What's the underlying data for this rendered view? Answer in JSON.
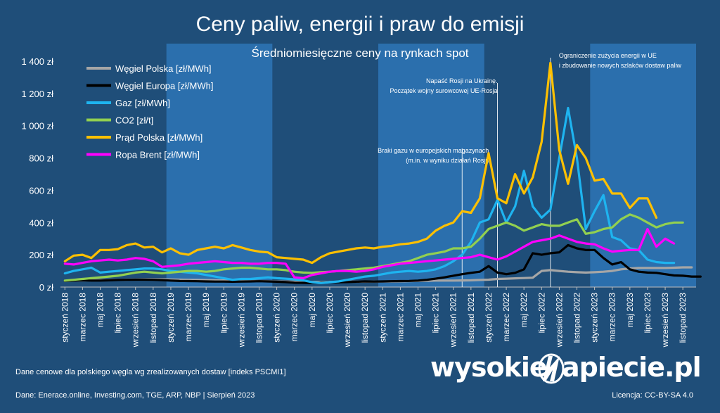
{
  "title": "Ceny paliw, energii i praw do emisji",
  "subtitle": "Średniomiesięczne ceny na rynkach spot",
  "notes": {
    "coal_source": "Dane cenowe dla polskiego węgla wg zrealizowanych dostaw [indeks PSCMI1]",
    "data_source": "Dane: Enerace.online, Investing.com, TGE, ARP, NBP   |   Sierpień 2023",
    "license": "Licencja: CC-BY-SA 4.0"
  },
  "logo": {
    "part1": "wysokie",
    "part2": "apiecie.pl",
    "icon": "lightning-n-icon"
  },
  "colors": {
    "background": "#1f4e79",
    "band": "#2e75b6"
  },
  "chart_data": {
    "type": "line",
    "title": "Ceny paliw, energii i praw do emisji",
    "subtitle": "Średniomiesięczne ceny na rynkach spot",
    "ylim": [
      0,
      1400
    ],
    "yticks": [
      0,
      200,
      400,
      600,
      800,
      1000,
      1200,
      1400
    ],
    "ytick_labels": [
      "0 zł",
      "200 zł",
      "400 zł",
      "600 zł",
      "800 zł",
      "1 000 zł",
      "1 200 zł",
      "1 400 zł"
    ],
    "x_months": [
      "2018-01",
      "2023-12"
    ],
    "xtick_labels": [
      "styczeń 2018",
      "marzec 2018",
      "maj 2018",
      "lipiec 2018",
      "wrzesień 2018",
      "listopad 2018",
      "styczeń 2019",
      "marzec 2019",
      "maj 2019",
      "lipiec 2019",
      "wrzesień 2019",
      "listopad 2019",
      "styczeń 2020",
      "marzec 2020",
      "maj 2020",
      "lipiec 2020",
      "wrzesień 2020",
      "listopad 2020",
      "styczeń 2021",
      "marzec 2021",
      "maj 2021",
      "lipiec 2021",
      "wrzesień 2021",
      "listopad 2021",
      "styczeń 2022",
      "marzec 2022",
      "maj 2022",
      "lipiec 2022",
      "wrzesień 2022",
      "listopad 2022",
      "styczeń 2023",
      "marzec 2023",
      "maj 2023",
      "lipiec 2023",
      "wrzesień 2023",
      "listopad 2023"
    ],
    "bands": [
      [
        "2019-01",
        "2019-12"
      ],
      [
        "2021-01",
        "2021-12"
      ],
      [
        "2023-01",
        "2023-12"
      ]
    ],
    "legend_position": "top-left",
    "annotations": [
      {
        "month": "2021-10",
        "lines": [
          "Braki gazu w europejskich magazynach",
          "(m.in. w wyniku działań Rosji)"
        ]
      },
      {
        "month": "2022-02",
        "lines": [
          "Napaść Rosji na Ukrainę.",
          "Początek wojny surowcowej UE-Rosja"
        ]
      },
      {
        "month": "2022-08",
        "lines": [
          "Ograniczenie zużycia energii w UE",
          "i zbudowanie nowych szlaków dostaw paliw"
        ]
      }
    ],
    "series": [
      {
        "name": "Węgiel Polska [zł/MWh]",
        "color": "#a6a6a6",
        "start": "2018-01",
        "values": [
          38,
          40,
          41,
          42,
          43,
          44,
          45,
          46,
          47,
          48,
          48,
          48,
          47,
          46,
          45,
          44,
          43,
          42,
          41,
          40,
          39,
          38,
          37,
          36,
          35,
          34,
          33,
          33,
          32,
          32,
          32,
          32,
          33,
          33,
          33,
          34,
          34,
          34,
          35,
          36,
          38,
          39,
          40,
          40,
          40,
          41,
          42,
          44,
          46,
          50,
          52,
          54,
          56,
          58,
          100,
          105,
          100,
          95,
          92,
          90,
          92,
          95,
          100,
          110,
          115,
          118,
          118,
          118,
          118,
          120,
          122,
          122
        ]
      },
      {
        "name": "Węgiel Europa [zł/MWh]",
        "color": "#000000",
        "start": "2018-01",
        "values": [
          38,
          40,
          42,
          40,
          40,
          42,
          44,
          45,
          46,
          46,
          45,
          43,
          40,
          38,
          37,
          36,
          35,
          34,
          34,
          33,
          34,
          35,
          36,
          35,
          33,
          31,
          27,
          26,
          25,
          27,
          30,
          30,
          31,
          33,
          35,
          34,
          35,
          36,
          37,
          38,
          40,
          45,
          52,
          60,
          70,
          80,
          88,
          95,
          130,
          90,
          80,
          88,
          110,
          210,
          200,
          210,
          215,
          260,
          240,
          230,
          230,
          180,
          140,
          155,
          110,
          95,
          90,
          88,
          80,
          72,
          70,
          65,
          65
        ]
      },
      {
        "name": "Gaz [zł/MWh]",
        "color": "#1eb4f0",
        "start": "2018-01",
        "values": [
          85,
          100,
          110,
          120,
          90,
          95,
          100,
          105,
          110,
          115,
          115,
          110,
          100,
          95,
          90,
          85,
          75,
          65,
          55,
          45,
          50,
          50,
          55,
          60,
          55,
          52,
          48,
          42,
          30,
          25,
          30,
          35,
          45,
          55,
          65,
          70,
          80,
          90,
          95,
          100,
          95,
          100,
          110,
          130,
          160,
          200,
          280,
          400,
          420,
          540,
          400,
          500,
          720,
          500,
          430,
          480,
          800,
          1110,
          800,
          360,
          470,
          570,
          310,
          290,
          240,
          230,
          170,
          155,
          150,
          150
        ]
      },
      {
        "name": "CO2 [zł/t]",
        "color": "#92d050",
        "start": "2018-01",
        "values": [
          40,
          45,
          50,
          55,
          60,
          65,
          70,
          80,
          90,
          95,
          90,
          85,
          90,
          95,
          100,
          100,
          95,
          100,
          110,
          115,
          120,
          120,
          115,
          110,
          110,
          105,
          95,
          90,
          88,
          92,
          95,
          100,
          105,
          110,
          115,
          120,
          130,
          140,
          150,
          160,
          180,
          200,
          210,
          220,
          240,
          240,
          250,
          300,
          360,
          380,
          400,
          380,
          350,
          370,
          390,
          380,
          380,
          400,
          420,
          330,
          340,
          360,
          370,
          420,
          450,
          430,
          400,
          370,
          390,
          400,
          400
        ]
      },
      {
        "name": "Prąd Polska [zł/MWh]",
        "color": "#ffc000",
        "start": "2018-01",
        "values": [
          160,
          195,
          200,
          180,
          230,
          230,
          235,
          260,
          270,
          245,
          250,
          215,
          240,
          210,
          200,
          230,
          240,
          250,
          240,
          260,
          245,
          230,
          220,
          215,
          185,
          180,
          175,
          170,
          150,
          185,
          210,
          220,
          230,
          240,
          245,
          240,
          250,
          255,
          265,
          270,
          280,
          300,
          350,
          380,
          400,
          470,
          460,
          550,
          830,
          550,
          520,
          700,
          580,
          680,
          900,
          1390,
          850,
          640,
          880,
          800,
          660,
          670,
          580,
          580,
          490,
          550,
          550,
          430
        ]
      },
      {
        "name": "Ropa Brent [zł/MWh]",
        "color": "#ff00ff",
        "start": "2018-01",
        "values": [
          145,
          140,
          150,
          160,
          165,
          170,
          165,
          170,
          180,
          175,
          160,
          125,
          130,
          135,
          145,
          150,
          155,
          160,
          155,
          150,
          150,
          145,
          145,
          150,
          150,
          145,
          60,
          55,
          75,
          85,
          95,
          100,
          100,
          95,
          100,
          110,
          125,
          135,
          145,
          150,
          155,
          160,
          165,
          170,
          175,
          180,
          185,
          200,
          185,
          170,
          190,
          220,
          250,
          280,
          290,
          300,
          320,
          300,
          280,
          270,
          265,
          240,
          220,
          225,
          230,
          230,
          360,
          250,
          300,
          270
        ]
      }
    ]
  }
}
